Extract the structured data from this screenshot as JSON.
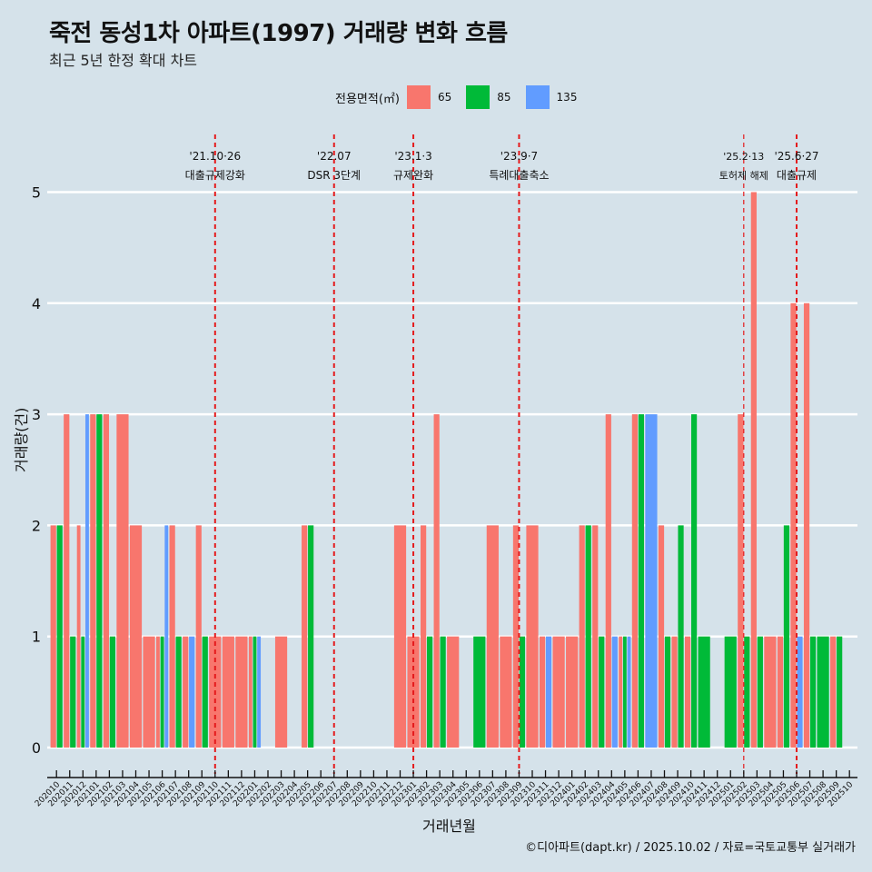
{
  "header": {
    "title": "죽전 동성1차 아파트(1997) 거래량 변화 흐름",
    "subtitle": "최근 5년 한정 확대 차트"
  },
  "legend": {
    "title": "전용면적(㎡)",
    "items": [
      {
        "label": "65",
        "color": "#F8766D"
      },
      {
        "label": "85",
        "color": "#00BA38"
      },
      {
        "label": "135",
        "color": "#619CFF"
      }
    ]
  },
  "caption": "©디아파트(dapt.kr) / 2025.10.02 / 자료=국토교통부 실거래가",
  "chart_data": {
    "type": "bar",
    "title": "죽전 동성1차 아파트(1997) 거래량 변화 흐름",
    "subtitle": "최근 5년 한정 확대 차트",
    "xlabel": "거래년월",
    "ylabel": "거래량(건)",
    "ylim": [
      0,
      5
    ],
    "yticks": [
      0,
      1,
      2,
      3,
      4,
      5
    ],
    "grid": true,
    "legend_position": "top",
    "bar_mode": "dodge",
    "categories": [
      "202010",
      "202011",
      "202012",
      "202101",
      "202102",
      "202103",
      "202104",
      "202105",
      "202106",
      "202107",
      "202108",
      "202109",
      "202110",
      "202111",
      "202112",
      "202201",
      "202202",
      "202203",
      "202204",
      "202205",
      "202206",
      "202207",
      "202208",
      "202209",
      "202210",
      "202211",
      "202212",
      "202301",
      "202302",
      "202303",
      "202304",
      "202305",
      "202306",
      "202307",
      "202308",
      "202309",
      "202310",
      "202311",
      "202312",
      "202401",
      "202402",
      "202403",
      "202404",
      "202405",
      "202406",
      "202407",
      "202408",
      "202409",
      "202410",
      "202411",
      "202412",
      "202501",
      "202502",
      "202503",
      "202504",
      "202505",
      "202506",
      "202507",
      "202508",
      "202509",
      "202510"
    ],
    "series": [
      {
        "name": "65",
        "color": "#F8766D",
        "values": [
          2,
          3,
          2,
          3,
          3,
          3,
          2,
          1,
          1,
          2,
          1,
          2,
          1,
          1,
          1,
          1,
          0,
          1,
          0,
          2,
          0,
          0,
          0,
          0,
          0,
          0,
          2,
          1,
          2,
          3,
          1,
          0,
          0,
          2,
          1,
          2,
          2,
          1,
          1,
          1,
          2,
          2,
          3,
          1,
          3,
          0,
          2,
          1,
          1,
          0,
          0,
          0,
          3,
          5,
          1,
          1,
          4,
          4,
          0,
          1,
          0
        ]
      },
      {
        "name": "85",
        "color": "#00BA38",
        "values": [
          2,
          1,
          1,
          3,
          1,
          0,
          0,
          0,
          1,
          1,
          0,
          1,
          0,
          0,
          0,
          1,
          0,
          0,
          0,
          2,
          0,
          0,
          0,
          0,
          0,
          0,
          0,
          0,
          1,
          1,
          0,
          0,
          1,
          0,
          0,
          1,
          0,
          0,
          0,
          0,
          2,
          1,
          0,
          1,
          3,
          0,
          1,
          2,
          3,
          1,
          0,
          1,
          1,
          1,
          0,
          2,
          0,
          1,
          1,
          1,
          0
        ]
      },
      {
        "name": "135",
        "color": "#619CFF",
        "values": [
          0,
          0,
          3,
          0,
          0,
          0,
          0,
          0,
          2,
          0,
          1,
          0,
          0,
          0,
          0,
          1,
          0,
          0,
          0,
          0,
          0,
          0,
          0,
          0,
          0,
          0,
          0,
          0,
          0,
          0,
          0,
          0,
          0,
          0,
          0,
          0,
          0,
          1,
          0,
          0,
          0,
          0,
          1,
          1,
          0,
          3,
          0,
          0,
          0,
          0,
          0,
          0,
          0,
          0,
          0,
          0,
          1,
          0,
          0,
          0,
          0
        ]
      }
    ],
    "annotations": [
      {
        "x": "202110",
        "date": "'21.10·26",
        "label": "대출규제강화",
        "style": "major"
      },
      {
        "x": "202207",
        "date": "'22.07",
        "label": "DSR 3단계",
        "style": "major"
      },
      {
        "x": "202301",
        "date": "'23.1·3",
        "label": "규제완화",
        "style": "major"
      },
      {
        "x": "202309",
        "date": "'23.9·7",
        "label": "특례대출축소",
        "style": "major"
      },
      {
        "x": "202502",
        "date": "'25.2·13",
        "label": "토허제 해제",
        "style": "minor"
      },
      {
        "x": "202506",
        "date": "'25.6·27",
        "label": "대출규제",
        "style": "major"
      }
    ]
  }
}
